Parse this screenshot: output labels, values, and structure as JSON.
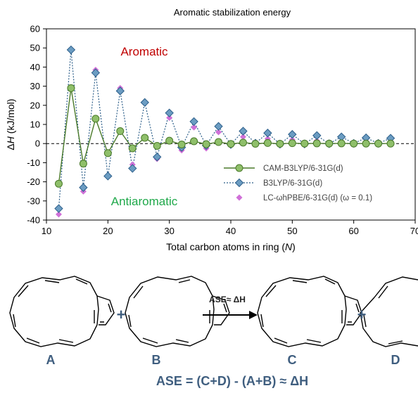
{
  "chart_data": {
    "type": "line",
    "title": "Aromatic stabilization energy",
    "xlabel": "Total carbon atoms in ring (N)",
    "ylabel": "ΔH (kJ/mol)",
    "xlim": [
      10,
      70
    ],
    "ylim": [
      -40,
      60
    ],
    "xticks": [
      "10",
      "20",
      "30",
      "40",
      "50",
      "60",
      "70"
    ],
    "yticks": [
      "60",
      "50",
      "40",
      "30",
      "20",
      "10",
      "0",
      "-10",
      "-20",
      "-30",
      "-40"
    ],
    "legend_position": "lower-right",
    "annotations": {
      "aromatic": "Aromatic",
      "antiaromatic": "Antiaromatic"
    },
    "x": [
      12,
      14,
      16,
      18,
      20,
      22,
      24,
      26,
      28,
      30,
      32,
      34,
      36,
      38,
      40,
      42,
      44,
      46,
      48,
      50,
      52,
      54,
      56,
      58,
      60,
      62,
      64,
      66
    ],
    "series": [
      {
        "name": "CAM-B3LYP/6-31G(d)",
        "color": "#4a7a2a",
        "fill": "#8fbf6a",
        "values": [
          -21,
          29,
          -10.5,
          13,
          -5,
          6.5,
          -2.5,
          3,
          -1.2,
          1.5,
          -0.5,
          1.2,
          -0.3,
          0.8,
          -0.2,
          0.5,
          -0.1,
          0.3,
          -0.1,
          0.2,
          0,
          0.1,
          0,
          0.1,
          0,
          0,
          0,
          0
        ]
      },
      {
        "name": "B3LYP/6-31G(d)",
        "color": "#2d5f8a",
        "fill": "#6b9cc2",
        "values": [
          -34,
          49,
          -23,
          37,
          -17,
          27.5,
          -13,
          21.5,
          -7,
          16,
          -2,
          11.5,
          -1,
          9,
          -0.5,
          6.5,
          0.2,
          5.5,
          -0.3,
          4.8,
          -0.2,
          4.2,
          -0.1,
          3.5,
          0.1,
          3,
          0.1,
          2.8
        ]
      },
      {
        "name": "LC-ωhPBE/6-31G(d) (ω = 0.1)",
        "color": "#c060c8",
        "fill": "#d070d8",
        "values": [
          -37,
          49,
          -25,
          38.5,
          -16.5,
          29,
          -11,
          21.5,
          -8,
          13.5,
          -3.5,
          8.5,
          -2.5,
          6,
          -1,
          3.5,
          -0.5,
          2.5,
          -0.5,
          2,
          -0.3,
          1.5,
          -0.2,
          1,
          0,
          0.8,
          0,
          0.5
        ]
      }
    ]
  },
  "scheme": {
    "labels": [
      "A",
      "B",
      "C",
      "D"
    ],
    "plus": "+",
    "arrow_label": "ASE≈ ΔH",
    "equation": "ASE = (C+D) - (A+B) ≈ ΔH"
  }
}
